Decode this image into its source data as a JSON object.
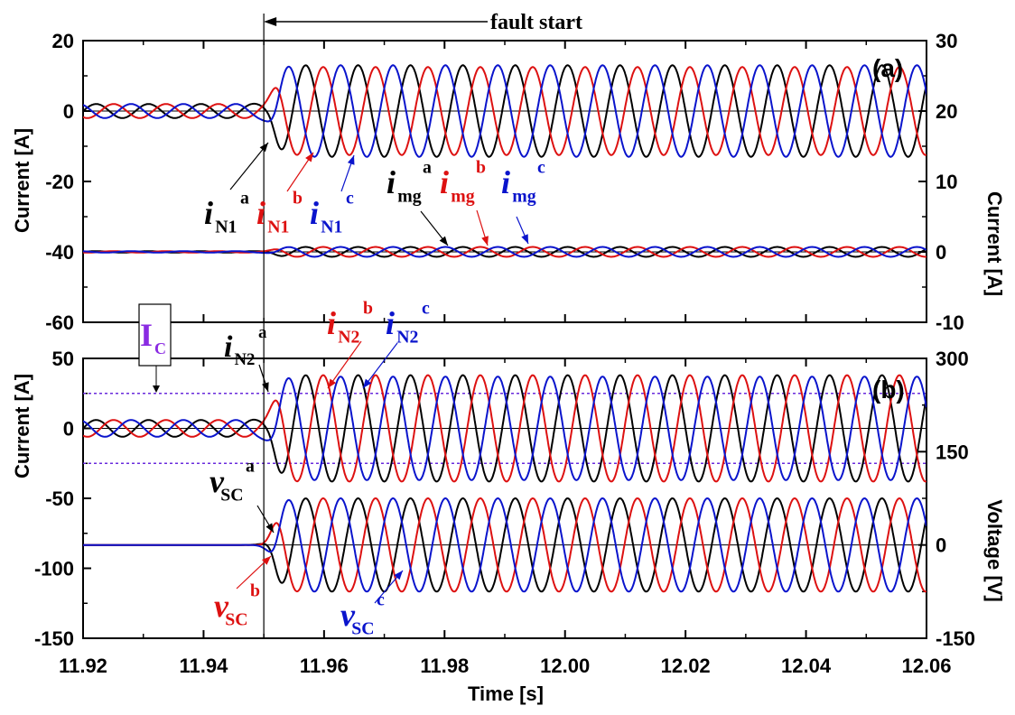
{
  "chart_data": [
    {
      "type": "line",
      "panel_label": "(a)",
      "xlabel": "Time [s]",
      "xlim": [
        11.92,
        12.06
      ],
      "x_ticks": [
        "11.92",
        "11.94",
        "11.96",
        "11.98",
        "12.00",
        "12.02",
        "12.04",
        "12.06"
      ],
      "ylabel_left": "Current [A]",
      "ylim_left": [
        -60,
        20
      ],
      "y_ticks_left": [
        "20",
        "0",
        "-20",
        "-40",
        "-60"
      ],
      "ylabel_right": "Current [A]",
      "ylim_right": [
        -10,
        30
      ],
      "y_ticks_right": [
        "30",
        "20",
        "10",
        "0",
        "-10"
      ],
      "fault_time": 11.95,
      "series": [
        {
          "name": "i_N1^a",
          "color": "#000000",
          "axis": "left",
          "pre_amplitude": 2,
          "post_amplitude": 13,
          "frequency_hz": 115,
          "phase_deg": 0
        },
        {
          "name": "i_N1^b",
          "color": "#dd1111",
          "axis": "left",
          "pre_amplitude": 2,
          "post_amplitude": 12.5,
          "frequency_hz": 115,
          "phase_deg": -120
        },
        {
          "name": "i_N1^c",
          "color": "#0a14cc",
          "axis": "left",
          "pre_amplitude": 2,
          "post_amplitude": 13,
          "frequency_hz": 115,
          "phase_deg": 120
        },
        {
          "name": "i_mg^a",
          "color": "#000000",
          "axis": "right",
          "pre_amplitude": 0.1,
          "post_amplitude": 0.7,
          "frequency_hz": 115,
          "phase_deg": 0
        },
        {
          "name": "i_mg^b",
          "color": "#dd1111",
          "axis": "right",
          "pre_amplitude": 0.1,
          "post_amplitude": 0.7,
          "frequency_hz": 115,
          "phase_deg": -120
        },
        {
          "name": "i_mg^c",
          "color": "#0a14cc",
          "axis": "right",
          "pre_amplitude": 0.1,
          "post_amplitude": 0.7,
          "frequency_hz": 115,
          "phase_deg": 120
        }
      ]
    },
    {
      "type": "line",
      "panel_label": "(b)",
      "xlabel": "Time [s]",
      "xlim": [
        11.92,
        12.06
      ],
      "ylabel_left": "Current [A]",
      "ylim_left": [
        -150,
        50
      ],
      "y_ticks_left": [
        "50",
        "0",
        "-50",
        "-100",
        "-150"
      ],
      "ylabel_right": "Voltage [V]",
      "ylim_right": [
        -150,
        300
      ],
      "y_ticks_right": [
        "300",
        "150",
        "0",
        "-150"
      ],
      "fault_time": 11.95,
      "threshold_lines": [
        25,
        -25
      ],
      "series": [
        {
          "name": "i_N2^a",
          "color": "#000000",
          "axis": "left",
          "pre_amplitude": 6,
          "post_amplitude": 38,
          "frequency_hz": 115,
          "phase_deg": 0
        },
        {
          "name": "i_N2^b",
          "color": "#dd1111",
          "axis": "left",
          "pre_amplitude": 6,
          "post_amplitude": 38,
          "frequency_hz": 115,
          "phase_deg": -120
        },
        {
          "name": "i_N2^c",
          "color": "#0a14cc",
          "axis": "left",
          "pre_amplitude": 6,
          "post_amplitude": 37,
          "frequency_hz": 115,
          "phase_deg": 120
        },
        {
          "name": "v_SC^a",
          "color": "#000000",
          "axis": "right",
          "pre_amplitude": 0,
          "post_amplitude": 75,
          "frequency_hz": 115,
          "phase_deg": 0
        },
        {
          "name": "v_SC^b",
          "color": "#dd1111",
          "axis": "right",
          "pre_amplitude": 0,
          "post_amplitude": 75,
          "frequency_hz": 115,
          "phase_deg": -120
        },
        {
          "name": "v_SC^c",
          "color": "#0a14cc",
          "axis": "right",
          "pre_amplitude": 0,
          "post_amplitude": 75,
          "frequency_hz": 115,
          "phase_deg": 120
        }
      ]
    }
  ],
  "annotations": {
    "fault_label": "fault start",
    "Ic_label": "I",
    "Ic_sub": "C",
    "Ic_color": "#8a2be2",
    "label_a": [
      {
        "base": "i",
        "sub": "N1",
        "sup": "a",
        "color": "#000000"
      },
      {
        "base": "i",
        "sub": "N1",
        "sup": "b",
        "color": "#dd1111"
      },
      {
        "base": "i",
        "sub": "N1",
        "sup": "c",
        "color": "#0a14cc"
      },
      {
        "base": "i",
        "sub": "mg",
        "sup": "a",
        "color": "#000000"
      },
      {
        "base": "i",
        "sub": "mg",
        "sup": "b",
        "color": "#dd1111"
      },
      {
        "base": "i",
        "sub": "mg",
        "sup": "c",
        "color": "#0a14cc"
      }
    ],
    "label_b": [
      {
        "base": "i",
        "sub": "N2",
        "sup": "a",
        "color": "#000000"
      },
      {
        "base": "i",
        "sub": "N2",
        "sup": "b",
        "color": "#dd1111"
      },
      {
        "base": "i",
        "sub": "N2",
        "sup": "c",
        "color": "#0a14cc"
      },
      {
        "base": "v",
        "sub": "SC",
        "sup": "a",
        "color": "#000000"
      },
      {
        "base": "v",
        "sub": "SC",
        "sup": "b",
        "color": "#dd1111"
      },
      {
        "base": "v",
        "sub": "SC",
        "sup": "c",
        "color": "#0a14cc"
      }
    ]
  }
}
